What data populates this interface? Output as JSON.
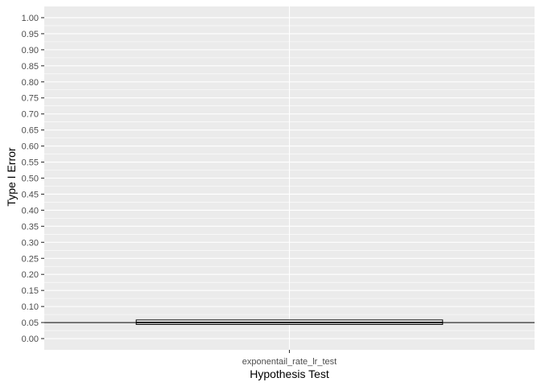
{
  "chart_data": {
    "type": "box",
    "xlabel": "Hypothesis Test",
    "ylabel": "Type I Error",
    "categories": [
      "exponentail_rate_lr_test"
    ],
    "ylim": [
      -0.035,
      1.035
    ],
    "y_ticks": [
      0.0,
      0.05,
      0.1,
      0.15,
      0.2,
      0.25,
      0.3,
      0.35,
      0.4,
      0.45,
      0.5,
      0.55,
      0.6,
      0.65,
      0.7,
      0.75,
      0.8,
      0.85,
      0.9,
      0.95,
      1.0
    ],
    "y_tick_labels": [
      "0.00",
      "0.05",
      "0.10",
      "0.15",
      "0.20",
      "0.25",
      "0.30",
      "0.35",
      "0.40",
      "0.45",
      "0.50",
      "0.55",
      "0.60",
      "0.65",
      "0.70",
      "0.75",
      "0.80",
      "0.85",
      "0.90",
      "0.95",
      "1.00"
    ],
    "boxes": [
      {
        "category": "exponentail_rate_lr_test",
        "q1": 0.044,
        "median": 0.05,
        "q3": 0.058,
        "whisker_low": 0.044,
        "whisker_high": 0.058
      }
    ],
    "reference_line": {
      "y": 0.05,
      "color": "#000000"
    },
    "grid": true,
    "legend": "none",
    "colors": {
      "panel_background": "#ebebeb",
      "grid": "#ffffff",
      "box_fill": "#ffffff",
      "box_outline": "#000000"
    }
  }
}
